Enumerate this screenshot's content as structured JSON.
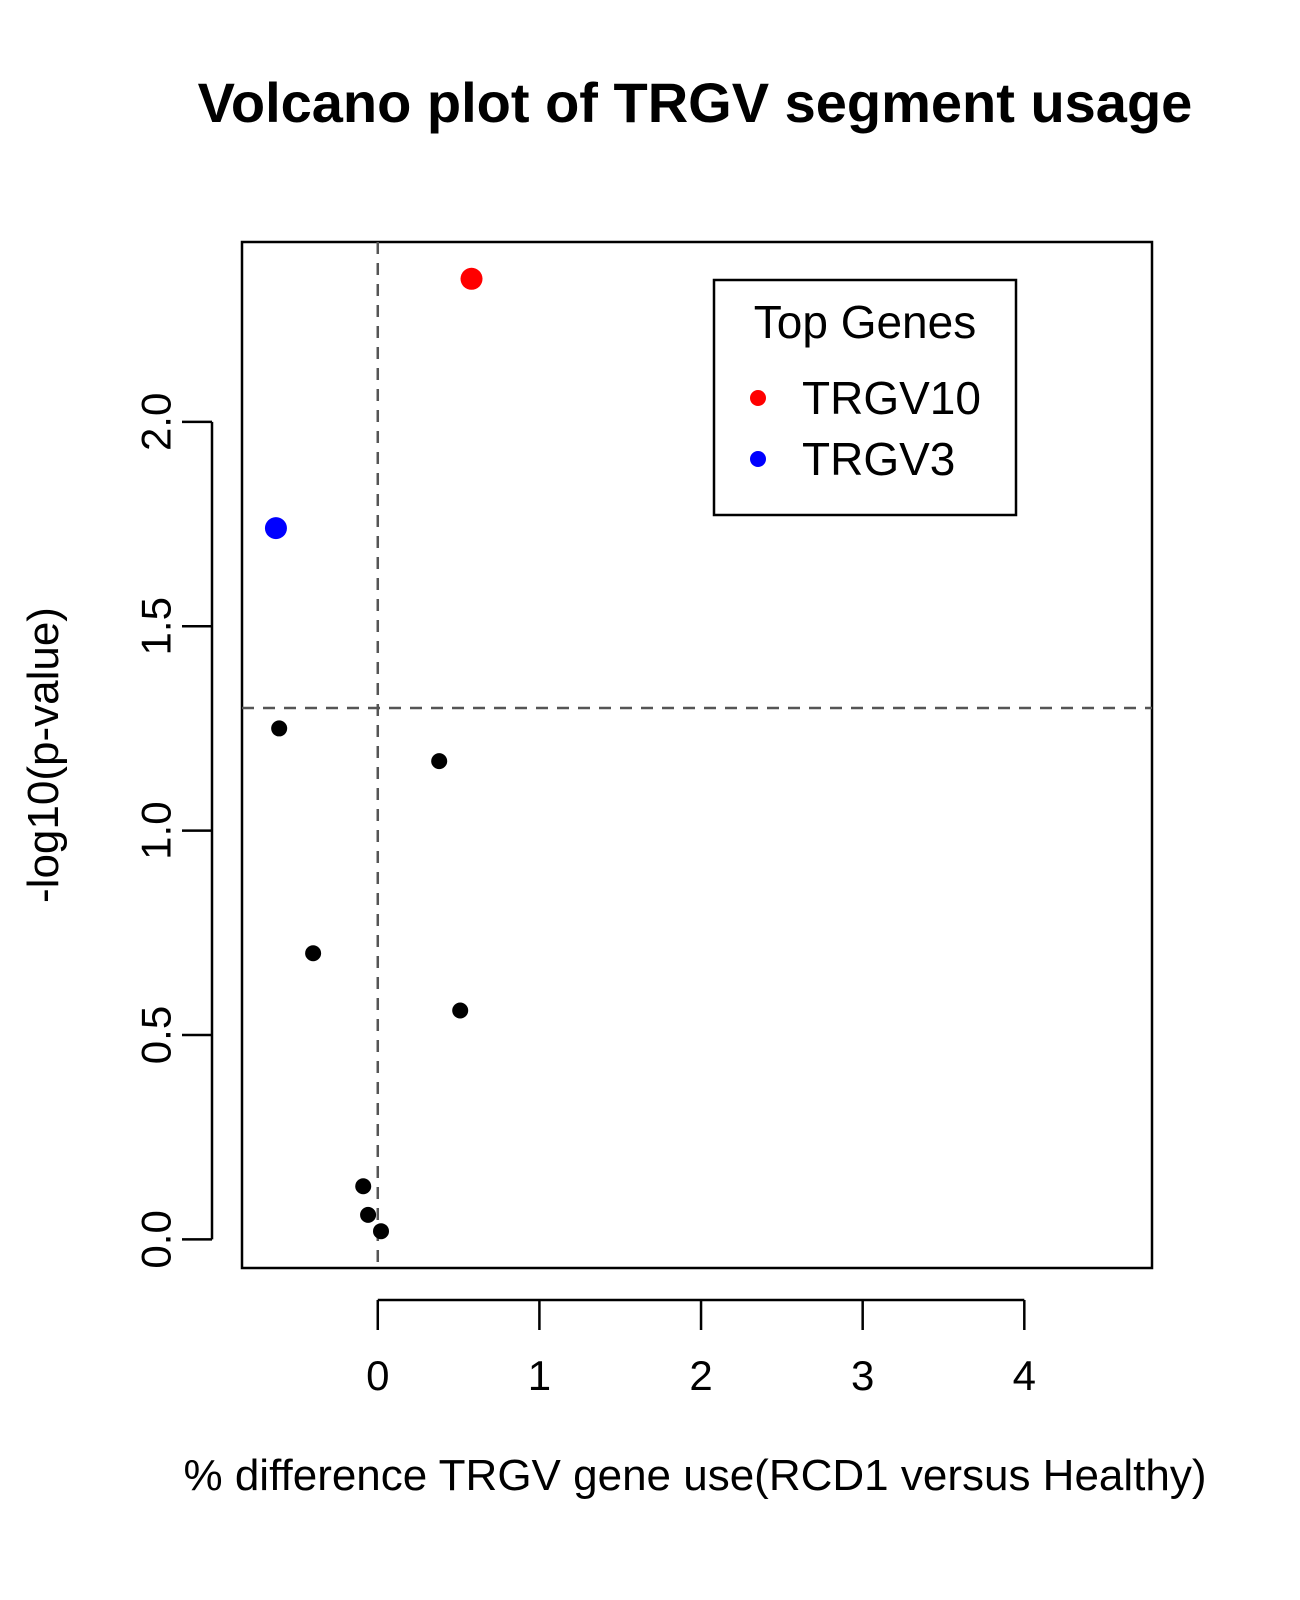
{
  "chart_data": {
    "type": "scatter",
    "title": "Volcano plot of TRGV segment usage",
    "xlabel": "% difference TRGV gene use(RCD1 versus Healthy)",
    "ylabel": "-log10(p-value)",
    "xlim": [
      -0.84,
      4.79
    ],
    "ylim": [
      -0.07,
      2.44
    ],
    "x_ticks": [
      0,
      1,
      2,
      3,
      4
    ],
    "y_ticks": [
      0.0,
      0.5,
      1.0,
      1.5,
      2.0
    ],
    "x_tick_labels": [
      "0",
      "1",
      "2",
      "3",
      "4"
    ],
    "y_tick_labels": [
      "0.0",
      "0.5",
      "1.0",
      "1.5",
      "2.0"
    ],
    "reference_lines": {
      "vertical_x": 0,
      "horizontal_y": 1.3
    },
    "grid": false,
    "legend": {
      "title": "Top Genes",
      "placement": "top-right",
      "entries": [
        {
          "label": "TRGV10",
          "color": "#ff0000"
        },
        {
          "label": "TRGV3",
          "color": "#0000ff"
        }
      ]
    },
    "highlighted_points": [
      {
        "label": "TRGV10",
        "x": 0.58,
        "y": 2.35,
        "color": "#ff0000"
      },
      {
        "label": "TRGV3",
        "x": -0.63,
        "y": 1.74,
        "color": "#0000ff"
      }
    ],
    "points": [
      {
        "x": -0.61,
        "y": 1.25
      },
      {
        "x": 0.38,
        "y": 1.17
      },
      {
        "x": -0.4,
        "y": 0.7
      },
      {
        "x": 0.51,
        "y": 0.56
      },
      {
        "x": -0.09,
        "y": 0.13
      },
      {
        "x": -0.06,
        "y": 0.06
      },
      {
        "x": 0.02,
        "y": 0.02
      }
    ],
    "point_color": "#000000"
  }
}
